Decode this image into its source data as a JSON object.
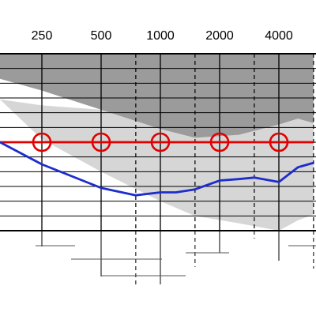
{
  "colors": {
    "background": "#ffffff",
    "grid": "#000000",
    "dark_zone": "#9b9b9b",
    "light_zone": "#d6d6d6",
    "red_line": "#e00000",
    "blue_line": "#1e2ccc"
  },
  "chart_data": {
    "type": "line",
    "title": "",
    "xlabel": "",
    "ylabel": "",
    "x_scale": "log2",
    "x_tick_labels": [
      "250",
      "500",
      "1000",
      "2000",
      "4000"
    ],
    "x_ticks": [
      250,
      500,
      1000,
      2000,
      4000
    ],
    "x_range": [
      150,
      6000
    ],
    "minor_x_dashed": [
      750,
      1500,
      3000,
      6000
    ],
    "y_grid_rows": 12,
    "y_range_rows": [
      0,
      12
    ],
    "grid": true,
    "legend": "none",
    "dark_zone_upper": [
      [
        150,
        0
      ],
      [
        6000,
        0
      ]
    ],
    "dark_zone_lower": [
      [
        150,
        1.7
      ],
      [
        250,
        2.5
      ],
      [
        500,
        3.8
      ],
      [
        1000,
        5.1
      ],
      [
        1500,
        5.7
      ],
      [
        2500,
        5.5
      ],
      [
        4000,
        4.8
      ],
      [
        5000,
        4.4
      ],
      [
        6000,
        4.7
      ]
    ],
    "light_zone_upper": [
      [
        150,
        3.1
      ],
      [
        250,
        3.5
      ],
      [
        500,
        3.8
      ],
      [
        6000,
        3.8
      ]
    ],
    "light_zone_lower": [
      [
        150,
        3.1
      ],
      [
        250,
        5.8
      ],
      [
        500,
        8.0
      ],
      [
        1000,
        10.0
      ],
      [
        1500,
        11.0
      ],
      [
        2500,
        11.5
      ],
      [
        4000,
        12.0
      ],
      [
        5000,
        11.3
      ],
      [
        6000,
        10.9
      ]
    ],
    "series": [
      {
        "color": "red",
        "marker": "circle",
        "x": [
          150,
          250,
          500,
          1000,
          2000,
          4000,
          6000
        ],
        "y": [
          6.0,
          6.0,
          6.0,
          6.0,
          6.0,
          6.0,
          6.0
        ],
        "marker_x": [
          250,
          500,
          1000,
          2000,
          4000
        ]
      },
      {
        "color": "blue",
        "marker": "none",
        "x": [
          150,
          250,
          500,
          750,
          1000,
          1200,
          1500,
          2000,
          2500,
          3000,
          4000,
          5000,
          6000
        ],
        "y": [
          6.0,
          7.5,
          9.1,
          9.6,
          9.4,
          9.4,
          9.2,
          8.6,
          8.5,
          8.4,
          8.7,
          7.7,
          7.4
        ]
      }
    ]
  }
}
